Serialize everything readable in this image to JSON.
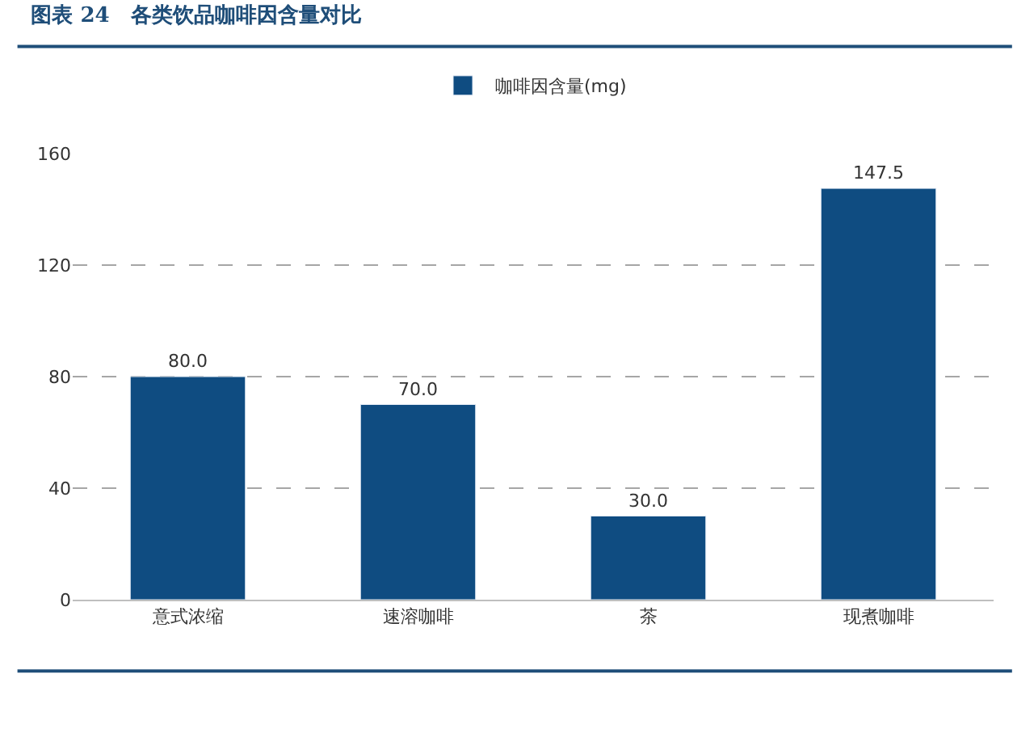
{
  "chart_data": {
    "type": "bar",
    "title": "图表 24　各类饮品咖啡因含量对比",
    "categories": [
      "意式浓缩",
      "速溶咖啡",
      "茶",
      "现煮咖啡"
    ],
    "series": [
      {
        "name": "咖啡因含量(mg)",
        "color": "#0f4c81",
        "values": [
          80.0,
          70.0,
          30.0,
          147.5
        ],
        "value_labels": [
          "80.0",
          "70.0",
          "30.0",
          "147.5"
        ]
      }
    ],
    "ylim": [
      0,
      160
    ],
    "yticks": [
      0,
      40,
      80,
      120,
      160
    ],
    "grid": "y",
    "legend": "top"
  }
}
